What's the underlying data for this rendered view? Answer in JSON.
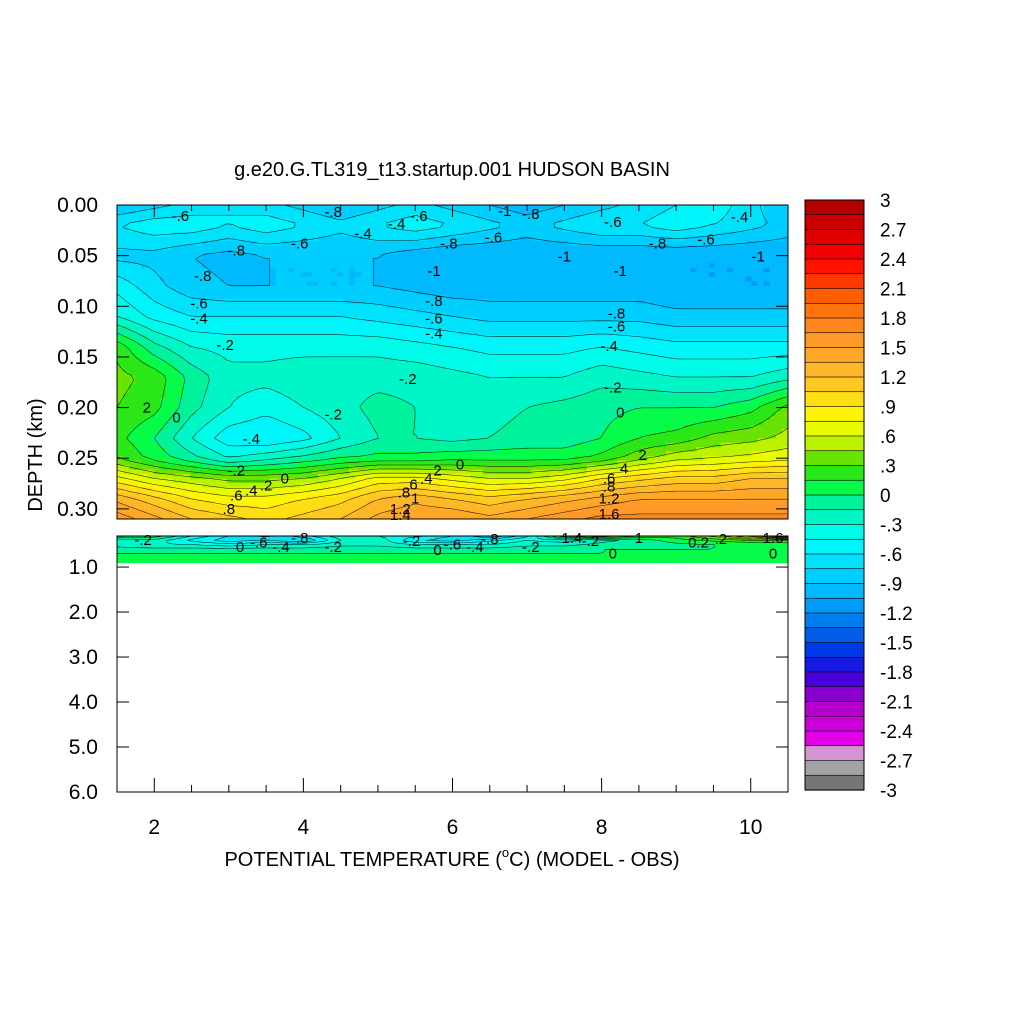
{
  "chart_data": {
    "type": "heatmap",
    "title": "g.e20.G.TL319_t13.startup.001 HUDSON BASIN",
    "xlabel": {
      "prefix": "POTENTIAL TEMPERATURE (",
      "sup": "o",
      "suffix": "C) (MODEL - OBS)"
    },
    "ylabel": "DEPTH (km)",
    "x_ticks": [
      2,
      4,
      6,
      8,
      10
    ],
    "x_tick_labels": [
      "2",
      "4",
      "6",
      "8",
      "10"
    ],
    "xlim": [
      1.5,
      10.5
    ],
    "upper_panel": {
      "ylim": [
        0.0,
        0.31
      ],
      "y_tick_labels": [
        "0.00",
        "0.05",
        "0.10",
        "0.15",
        "0.20",
        "0.25",
        "0.30"
      ],
      "y_ticks": [
        0.0,
        0.05,
        0.1,
        0.15,
        0.2,
        0.25,
        0.3
      ]
    },
    "lower_panel": {
      "ylim": [
        0.31,
        6.0
      ],
      "y_tick_labels": [
        "1.0",
        "2.0",
        "3.0",
        "4.0",
        "5.0",
        "6.0"
      ],
      "y_ticks": [
        1.0,
        2.0,
        3.0,
        4.0,
        5.0,
        6.0
      ]
    },
    "colorbar": {
      "range": [
        -3,
        3
      ],
      "levels": 40,
      "tick_labels": [
        "3",
        "2.7",
        "2.4",
        "2.1",
        "1.8",
        "1.5",
        "1.2",
        ".9",
        ".6",
        ".3",
        "0",
        "-.3",
        "-.6",
        "-.9",
        "-1.2",
        "-1.5",
        "-1.8",
        "-2.1",
        "-2.4",
        "-2.7",
        "-3"
      ]
    },
    "field_upper": {
      "x": [
        1.5,
        2,
        2.5,
        3,
        3.5,
        4,
        4.5,
        5,
        5.5,
        6,
        6.5,
        7,
        7.5,
        8,
        8.5,
        9,
        9.5,
        10,
        10.5
      ],
      "depth": [
        0.0,
        0.02,
        0.05,
        0.08,
        0.11,
        0.14,
        0.17,
        0.2,
        0.23,
        0.25,
        0.27,
        0.29,
        0.31
      ],
      "values": [
        [
          -0.9,
          -0.8,
          -0.7,
          -0.6,
          -0.7,
          -0.8,
          -0.9,
          -0.8,
          -0.7,
          -0.8,
          -0.9,
          -1.0,
          -0.9,
          -0.8,
          -0.7,
          -0.6,
          -0.5,
          -0.7,
          -0.9
        ],
        [
          -0.6,
          -0.5,
          -0.5,
          -0.6,
          -0.5,
          -0.6,
          -0.7,
          -0.6,
          -0.5,
          -0.6,
          -0.7,
          -0.8,
          -0.7,
          -0.6,
          -0.6,
          -0.5,
          -0.6,
          -0.7,
          -0.8
        ],
        [
          -0.8,
          -0.8,
          -0.9,
          -0.95,
          -0.9,
          -0.9,
          -0.9,
          -0.9,
          -1.0,
          -1.05,
          -1.05,
          -1.05,
          -1.05,
          -1.05,
          -1.05,
          -1.05,
          -1.05,
          -1.05,
          -1.05
        ],
        [
          -0.5,
          -0.7,
          -0.85,
          -0.9,
          -0.9,
          -0.9,
          -0.9,
          -0.9,
          -0.95,
          -1.0,
          -1.0,
          -1.0,
          -1.0,
          -1.0,
          -1.0,
          -1.05,
          -1.05,
          -1.05,
          -1.05
        ],
        [
          -0.3,
          -0.5,
          -0.6,
          -0.6,
          -0.6,
          -0.6,
          -0.6,
          -0.65,
          -0.7,
          -0.75,
          -0.8,
          -0.8,
          -0.8,
          -0.8,
          -0.8,
          -0.85,
          -0.85,
          -0.85,
          -0.85
        ],
        [
          0.25,
          -0.1,
          -0.3,
          -0.35,
          -0.35,
          -0.35,
          -0.35,
          -0.35,
          -0.4,
          -0.45,
          -0.5,
          -0.5,
          -0.5,
          -0.45,
          -0.5,
          -0.55,
          -0.55,
          -0.55,
          -0.55
        ],
        [
          0.35,
          0.25,
          -0.05,
          -0.25,
          -0.25,
          -0.2,
          -0.2,
          -0.2,
          -0.2,
          -0.25,
          -0.3,
          -0.3,
          -0.3,
          -0.2,
          -0.25,
          -0.3,
          -0.3,
          -0.3,
          -0.2
        ],
        [
          0.3,
          0.2,
          -0.1,
          -0.3,
          -0.4,
          -0.3,
          -0.2,
          -0.1,
          -0.15,
          -0.2,
          -0.2,
          -0.15,
          -0.1,
          -0.05,
          0.0,
          0.0,
          0.0,
          0.1,
          0.35
        ],
        [
          0.2,
          0.0,
          -0.3,
          -0.55,
          -0.6,
          -0.5,
          -0.3,
          -0.15,
          -0.15,
          -0.2,
          -0.15,
          -0.1,
          -0.1,
          0.0,
          0.15,
          0.2,
          0.35,
          0.4,
          0.5
        ],
        [
          0.3,
          0.1,
          -0.1,
          -0.3,
          -0.2,
          -0.1,
          0.0,
          0.05,
          0.05,
          0.1,
          0.1,
          0.1,
          0.1,
          0.2,
          0.4,
          0.55,
          0.6,
          0.65,
          0.7
        ],
        [
          0.8,
          0.6,
          0.5,
          0.4,
          0.4,
          0.45,
          0.6,
          0.8,
          0.8,
          0.7,
          0.6,
          0.6,
          0.7,
          0.9,
          1.0,
          1.1,
          1.1,
          1.2,
          1.2
        ],
        [
          1.3,
          1.1,
          0.9,
          0.8,
          0.8,
          0.9,
          1.0,
          1.2,
          1.3,
          1.2,
          1.1,
          1.2,
          1.3,
          1.4,
          1.5,
          1.5,
          1.5,
          1.5,
          1.5
        ],
        [
          1.6,
          1.4,
          1.2,
          1.1,
          1.0,
          1.1,
          1.2,
          1.4,
          1.5,
          1.5,
          1.4,
          1.5,
          1.6,
          1.7,
          1.7,
          1.7,
          1.7,
          1.7,
          1.7
        ]
      ]
    },
    "field_lower": {
      "x": [
        1.5,
        2,
        2.5,
        3,
        3.5,
        4,
        4.5,
        5,
        5.5,
        6,
        6.5,
        7,
        7.5,
        8,
        8.5,
        9,
        9.5,
        10,
        10.5
      ],
      "depth": [
        0.31,
        0.4,
        0.5,
        0.6,
        0.7,
        0.8,
        6.0
      ],
      "values": [
        [
          0.2,
          0.1,
          -0.3,
          -0.6,
          -0.8,
          -0.5,
          -0.2,
          -0.3,
          -0.4,
          -0.6,
          -0.9,
          -0.5,
          0.3,
          0.6,
          0.3,
          0.2,
          0.5,
          1.0,
          1.6
        ],
        [
          -0.3,
          -0.2,
          -0.5,
          -0.7,
          -0.6,
          -0.8,
          -0.3,
          -0.2,
          -0.6,
          -0.7,
          -0.5,
          -0.3,
          -0.4,
          -0.2,
          -0.1,
          0.1,
          0.2,
          0.3,
          0.3
        ],
        [
          -0.2,
          -0.3,
          -0.3,
          -0.4,
          -0.3,
          -0.3,
          -0.2,
          -0.2,
          -0.3,
          -0.3,
          -0.3,
          -0.2,
          -0.2,
          -0.1,
          -0.1,
          -0.05,
          0.0,
          0.0,
          0.05
        ],
        [
          -0.1,
          -0.1,
          -0.1,
          -0.1,
          -0.1,
          -0.1,
          -0.05,
          -0.05,
          -0.1,
          -0.1,
          -0.1,
          -0.05,
          -0.05,
          0.0,
          0.0,
          0.0,
          0.0,
          0.0,
          0.0
        ],
        [
          0.0,
          0.0,
          0.0,
          0.0,
          0.0,
          0.0,
          0.0,
          0.0,
          0.0,
          0.0,
          0.0,
          0.0,
          0.0,
          0.0,
          0.0,
          0.0,
          0.0,
          0.0,
          0.0
        ],
        [
          0.0,
          0.0,
          0.0,
          0.0,
          0.0,
          0.0,
          0.0,
          0.0,
          0.0,
          0.0,
          0.0,
          0.0,
          0.0,
          0.0,
          0.0,
          0.0,
          0.0,
          0.0,
          0.0
        ],
        [
          0.0,
          0.0,
          0.0,
          0.0,
          0.0,
          0.0,
          0.0,
          0.0,
          0.0,
          0.0,
          0.0,
          0.0,
          0.0,
          0.0,
          0.0,
          0.0,
          0.0,
          0.0,
          0.0
        ]
      ]
    },
    "contour_labels": [
      {
        "text": "-.6",
        "x": 2.35,
        "d": 0.011
      },
      {
        "text": "-.8",
        "x": 4.4,
        "d": 0.007
      },
      {
        "text": "-.4",
        "x": 5.25,
        "d": 0.019
      },
      {
        "text": "-.6",
        "x": 5.55,
        "d": 0.011
      },
      {
        "text": "-1",
        "x": 6.7,
        "d": 0.006
      },
      {
        "text": "-.8",
        "x": 7.05,
        "d": 0.009
      },
      {
        "text": "-.6",
        "x": 8.15,
        "d": 0.017
      },
      {
        "text": "-.4",
        "x": 9.85,
        "d": 0.012
      },
      {
        "text": "-.4",
        "x": 4.8,
        "d": 0.028
      },
      {
        "text": "-.6",
        "x": 3.95,
        "d": 0.038
      },
      {
        "text": "-.6",
        "x": 6.55,
        "d": 0.032
      },
      {
        "text": "-.6",
        "x": 9.4,
        "d": 0.034
      },
      {
        "text": "-.8",
        "x": 3.1,
        "d": 0.045
      },
      {
        "text": "-.8",
        "x": 5.95,
        "d": 0.038
      },
      {
        "text": "-.8",
        "x": 8.75,
        "d": 0.038
      },
      {
        "text": "-1",
        "x": 7.5,
        "d": 0.051
      },
      {
        "text": "-1",
        "x": 10.1,
        "d": 0.051
      },
      {
        "text": "-1",
        "x": 5.75,
        "d": 0.065
      },
      {
        "text": "-1",
        "x": 8.25,
        "d": 0.065
      },
      {
        "text": "-.8",
        "x": 2.65,
        "d": 0.07
      },
      {
        "text": "-.8",
        "x": 5.75,
        "d": 0.095
      },
      {
        "text": "-.6",
        "x": 2.6,
        "d": 0.097
      },
      {
        "text": "-.8",
        "x": 8.2,
        "d": 0.107
      },
      {
        "text": "-.4",
        "x": 2.6,
        "d": 0.112
      },
      {
        "text": "-.6",
        "x": 5.75,
        "d": 0.112
      },
      {
        "text": "-.6",
        "x": 8.2,
        "d": 0.12
      },
      {
        "text": "-.4",
        "x": 5.75,
        "d": 0.127
      },
      {
        "text": "-.2",
        "x": 2.95,
        "d": 0.138
      },
      {
        "text": "-.4",
        "x": 8.1,
        "d": 0.139
      },
      {
        "text": "-.2",
        "x": 5.4,
        "d": 0.172
      },
      {
        "text": "-.2",
        "x": 8.15,
        "d": 0.18
      },
      {
        "text": "-.2",
        "x": 4.4,
        "d": 0.207
      },
      {
        "text": "2",
        "x": 1.9,
        "d": 0.2
      },
      {
        "text": "0",
        "x": 2.3,
        "d": 0.21
      },
      {
        "text": "0",
        "x": 8.25,
        "d": 0.205
      },
      {
        "text": "-.4",
        "x": 3.3,
        "d": 0.231
      },
      {
        "text": "2",
        "x": 8.55,
        "d": 0.247
      },
      {
        "text": "0",
        "x": 6.1,
        "d": 0.256
      },
      {
        "text": "-.2",
        "x": 3.1,
        "d": 0.262
      },
      {
        "text": "0",
        "x": 3.75,
        "d": 0.27
      },
      {
        "text": "4",
        "x": 8.3,
        "d": 0.26
      },
      {
        "text": "2",
        "x": 5.8,
        "d": 0.262
      },
      {
        "text": ".4",
        "x": 5.65,
        "d": 0.27
      },
      {
        "text": ".2",
        "x": 3.5,
        "d": 0.277
      },
      {
        "text": ".4",
        "x": 3.3,
        "d": 0.282
      },
      {
        "text": ".6",
        "x": 3.1,
        "d": 0.287
      },
      {
        "text": ".6",
        "x": 5.45,
        "d": 0.276
      },
      {
        "text": ".6",
        "x": 8.1,
        "d": 0.27
      },
      {
        "text": ".8",
        "x": 5.35,
        "d": 0.284
      },
      {
        "text": ".8",
        "x": 8.1,
        "d": 0.278
      },
      {
        "text": "1",
        "x": 5.5,
        "d": 0.29
      },
      {
        "text": "1.2",
        "x": 5.3,
        "d": 0.3
      },
      {
        "text": "1.2",
        "x": 8.1,
        "d": 0.29
      },
      {
        "text": "1.4",
        "x": 5.3,
        "d": 0.306
      },
      {
        "text": "1.6",
        "x": 8.1,
        "d": 0.305
      },
      {
        "text": ".8",
        "x": 3.0,
        "d": 0.3
      },
      {
        "text": "-.2",
        "x": 1.85,
        "d": 0.4
      },
      {
        "text": "0",
        "x": 3.15,
        "d": 0.55
      },
      {
        "text": "-.6",
        "x": 3.4,
        "d": 0.45
      },
      {
        "text": "-.4",
        "x": 3.7,
        "d": 0.55
      },
      {
        "text": "-.8",
        "x": 3.95,
        "d": 0.36
      },
      {
        "text": "-.2",
        "x": 4.4,
        "d": 0.55
      },
      {
        "text": "-.2",
        "x": 5.45,
        "d": 0.42
      },
      {
        "text": "0",
        "x": 5.8,
        "d": 0.62
      },
      {
        "text": "-.6",
        "x": 6.0,
        "d": 0.5
      },
      {
        "text": "-.4",
        "x": 6.3,
        "d": 0.55
      },
      {
        "text": "-.8",
        "x": 6.5,
        "d": 0.38
      },
      {
        "text": "-.2",
        "x": 7.05,
        "d": 0.55
      },
      {
        "text": "1.4",
        "x": 7.6,
        "d": 0.36
      },
      {
        "text": "-.2",
        "x": 7.85,
        "d": 0.42
      },
      {
        "text": "0",
        "x": 8.15,
        "d": 0.7
      },
      {
        "text": "1",
        "x": 8.5,
        "d": 0.36
      },
      {
        "text": "0.2",
        "x": 9.3,
        "d": 0.45
      },
      {
        "text": ".2",
        "x": 9.6,
        "d": 0.38
      },
      {
        "text": "1.6",
        "x": 10.3,
        "d": 0.36
      },
      {
        "text": "0",
        "x": 10.3,
        "d": 0.7
      }
    ]
  }
}
